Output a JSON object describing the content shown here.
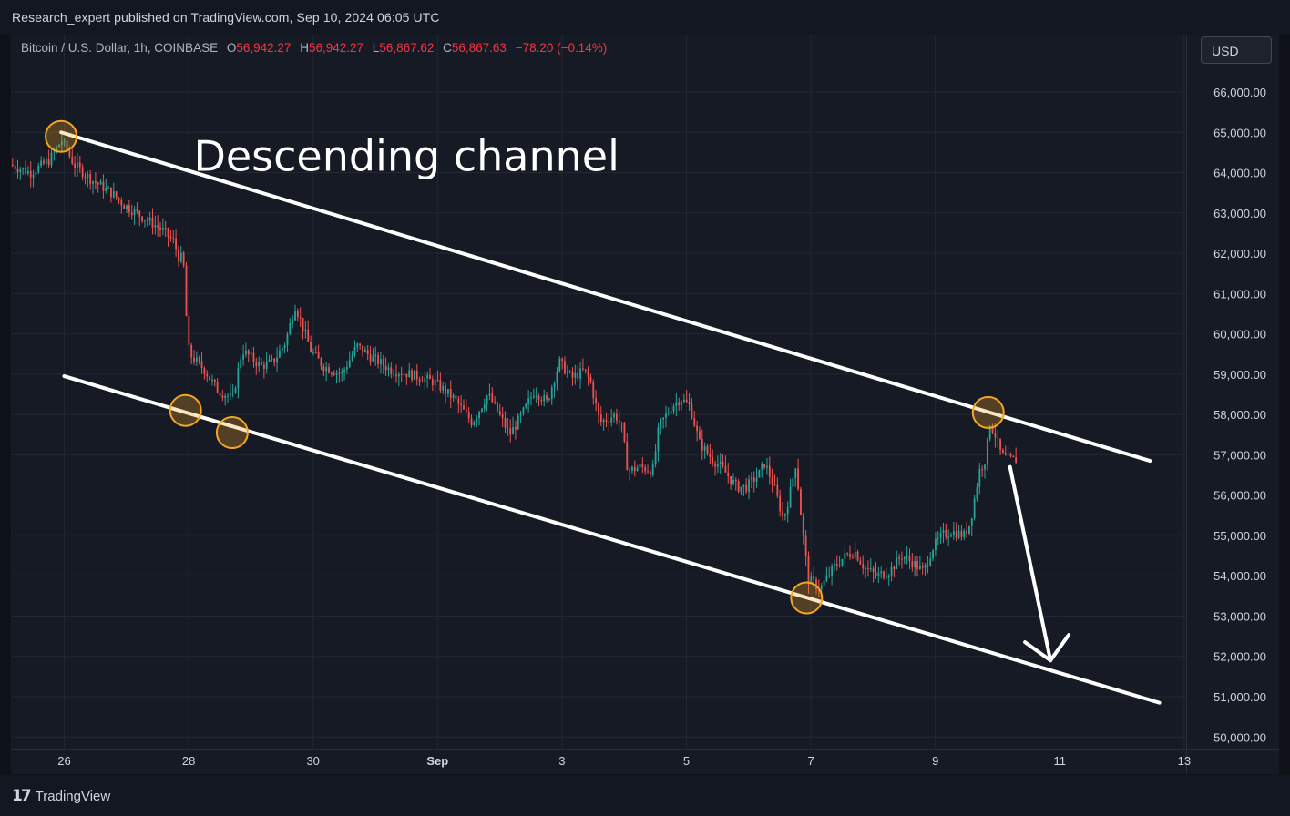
{
  "header": {
    "publish_line": "Research_expert published on TradingView.com, Sep 10, 2024 06:05 UTC"
  },
  "legend": {
    "symbol": "Bitcoin / U.S. Dollar, 1h, COINBASE",
    "open_key": "O",
    "open": "56,942.27",
    "high_key": "H",
    "high": "56,942.27",
    "low_key": "L",
    "low": "56,867.62",
    "close_key": "C",
    "close": "56,867.63",
    "change": "−78.20 (−0.14%)"
  },
  "currency_button": "USD",
  "footer": {
    "brand": "TradingView",
    "logo_icon": "tradingview-logo-icon"
  },
  "colors": {
    "up": "#26a69a",
    "down": "#ef5350",
    "annotation": "#ffffff",
    "marker": "#f5a623",
    "background": "#161a25"
  },
  "chart_data": {
    "type": "candlestick",
    "ylim": [
      49700,
      66800
    ],
    "x_domain_days": [
      "Aug 26",
      "Sep 13"
    ],
    "y_ticks": [
      "66,000.00",
      "65,000.00",
      "64,000.00",
      "63,000.00",
      "62,000.00",
      "61,000.00",
      "60,000.00",
      "59,000.00",
      "58,000.00",
      "57,000.00",
      "56,000.00",
      "55,000.00",
      "54,000.00",
      "53,000.00",
      "52,000.00",
      "51,000.00",
      "50,000.00"
    ],
    "y_tick_values": [
      66000,
      65000,
      64000,
      63000,
      62000,
      61000,
      60000,
      59000,
      58000,
      57000,
      56000,
      55000,
      54000,
      53000,
      52000,
      51000,
      50000
    ],
    "x_ticks": [
      {
        "label": "26",
        "day": 0
      },
      {
        "label": "28",
        "day": 2
      },
      {
        "label": "30",
        "day": 4
      },
      {
        "label": "Sep",
        "day": 6
      },
      {
        "label": "3",
        "day": 8
      },
      {
        "label": "5",
        "day": 10
      },
      {
        "label": "7",
        "day": 12
      },
      {
        "label": "9",
        "day": 14
      },
      {
        "label": "11",
        "day": 16
      },
      {
        "label": "13",
        "day": 18
      }
    ],
    "price_path": [
      [
        -0.83,
        64200
      ],
      [
        -0.5,
        64000
      ],
      [
        -0.2,
        64300
      ],
      [
        0,
        64800
      ],
      [
        0.2,
        64200
      ],
      [
        0.5,
        63800
      ],
      [
        0.8,
        63500
      ],
      [
        1.0,
        63200
      ],
      [
        1.3,
        62900
      ],
      [
        1.6,
        62600
      ],
      [
        1.8,
        62300
      ],
      [
        1.9,
        61800
      ],
      [
        1.95,
        62000
      ],
      [
        2.0,
        60500
      ],
      [
        2.05,
        59500
      ],
      [
        2.3,
        59100
      ],
      [
        2.5,
        58600
      ],
      [
        2.75,
        58400
      ],
      [
        2.9,
        59600
      ],
      [
        3.2,
        59200
      ],
      [
        3.4,
        59300
      ],
      [
        3.6,
        59800
      ],
      [
        3.75,
        60700
      ],
      [
        3.85,
        60300
      ],
      [
        4.0,
        59600
      ],
      [
        4.2,
        59200
      ],
      [
        4.5,
        59000
      ],
      [
        4.75,
        59700
      ],
      [
        5.0,
        59400
      ],
      [
        5.3,
        59100
      ],
      [
        5.6,
        59000
      ],
      [
        6.0,
        58800
      ],
      [
        6.3,
        58400
      ],
      [
        6.6,
        57800
      ],
      [
        6.85,
        58500
      ],
      [
        7.0,
        58100
      ],
      [
        7.2,
        57500
      ],
      [
        7.4,
        58000
      ],
      [
        7.6,
        58600
      ],
      [
        7.8,
        58300
      ],
      [
        8.0,
        59300
      ],
      [
        8.2,
        58900
      ],
      [
        8.4,
        59100
      ],
      [
        8.5,
        58800
      ],
      [
        8.65,
        57800
      ],
      [
        8.9,
        58000
      ],
      [
        9.0,
        57700
      ],
      [
        9.1,
        56600
      ],
      [
        9.3,
        56700
      ],
      [
        9.5,
        56600
      ],
      [
        9.6,
        57700
      ],
      [
        9.8,
        58200
      ],
      [
        9.95,
        58400
      ],
      [
        10.1,
        58200
      ],
      [
        10.25,
        57300
      ],
      [
        10.45,
        56900
      ],
      [
        10.6,
        56700
      ],
      [
        10.85,
        56200
      ],
      [
        11.0,
        56200
      ],
      [
        11.2,
        56500
      ],
      [
        11.3,
        56800
      ],
      [
        11.45,
        56200
      ],
      [
        11.6,
        55400
      ],
      [
        11.7,
        56000
      ],
      [
        11.8,
        56800
      ],
      [
        11.9,
        55200
      ],
      [
        12.0,
        53900
      ],
      [
        12.2,
        53700
      ],
      [
        12.4,
        54200
      ],
      [
        12.6,
        54500
      ],
      [
        12.75,
        54600
      ],
      [
        12.9,
        54200
      ],
      [
        13.1,
        54000
      ],
      [
        13.3,
        54100
      ],
      [
        13.5,
        54500
      ],
      [
        13.7,
        54300
      ],
      [
        13.85,
        54100
      ],
      [
        14.0,
        54700
      ],
      [
        14.15,
        55000
      ],
      [
        14.3,
        55100
      ],
      [
        14.5,
        55000
      ],
      [
        14.6,
        55300
      ],
      [
        14.75,
        56600
      ],
      [
        14.85,
        56900
      ],
      [
        14.92,
        57800
      ],
      [
        15.0,
        57500
      ],
      [
        15.1,
        57000
      ],
      [
        15.2,
        56900
      ],
      [
        15.3,
        56867
      ]
    ],
    "lines": [
      {
        "name": "upper-channel",
        "from": [
          -0.05,
          65000
        ],
        "to": [
          17.45,
          56850
        ]
      },
      {
        "name": "lower-channel",
        "from": [
          0,
          58950
        ],
        "to": [
          17.6,
          50850
        ]
      },
      {
        "name": "forecast-arrow",
        "from": [
          15.2,
          56700
        ],
        "to": [
          15.85,
          51900
        ]
      }
    ],
    "markers": [
      [
        -0.05,
        64900
      ],
      [
        1.95,
        58100
      ],
      [
        2.7,
        57550
      ],
      [
        11.93,
        53450
      ],
      [
        14.85,
        58050
      ]
    ],
    "annotations": [
      {
        "text": "Descending channel",
        "day": 5.5,
        "price": 64050
      }
    ]
  }
}
